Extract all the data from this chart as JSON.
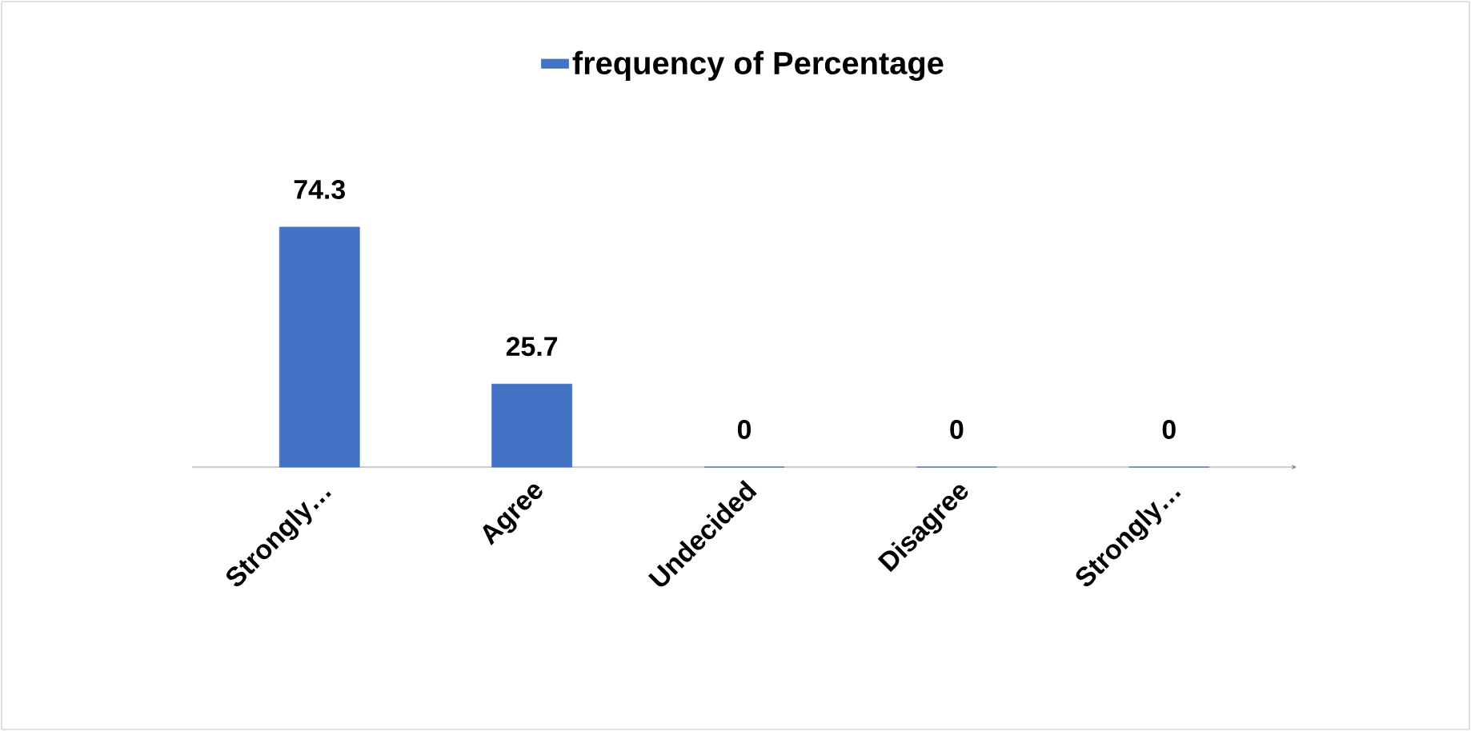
{
  "chart_data": {
    "type": "bar",
    "categories": [
      "Strongly…",
      "Agree",
      "Undecided",
      "Disagree",
      "Strongly…"
    ],
    "series": [
      {
        "name": "frequency of Percentage",
        "color": "#4472c4",
        "values": [
          74.3,
          25.7,
          0,
          0,
          0
        ]
      }
    ],
    "data_labels": true,
    "legend": "top"
  }
}
